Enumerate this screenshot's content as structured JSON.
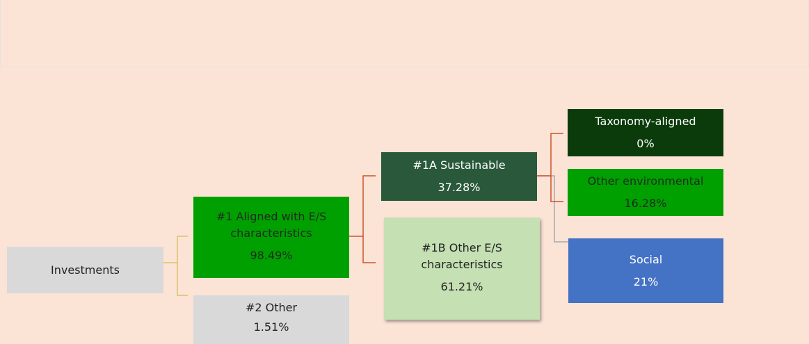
{
  "nodes": [
    {
      "label": "Investments"
    },
    {
      "label": "#1 Aligned with E/S characteristics",
      "value": "98.49%"
    },
    {
      "label": "#2 Other",
      "value": "1.51%"
    },
    {
      "label": "#1A Sustainable",
      "value": "37.28%"
    },
    {
      "label": "#1B Other E/S characteristics",
      "value": "61.21%"
    },
    {
      "label": "Taxonomy-aligned",
      "value": "0%"
    },
    {
      "label": "Other environmental",
      "value": "16.28%"
    },
    {
      "label": "Social",
      "value": "21%"
    }
  ]
}
